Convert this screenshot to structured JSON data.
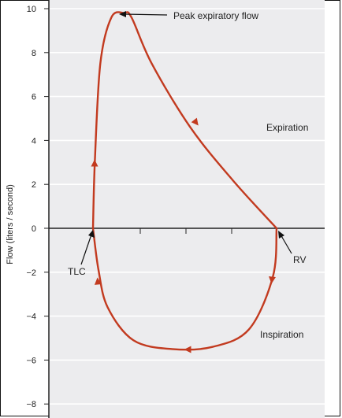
{
  "chart_data": {
    "type": "line",
    "title": "",
    "xlabel": "",
    "ylabel": "Flow (liters / second)",
    "ylim": [
      -8.5,
      10.2
    ],
    "yticks": [
      10,
      8,
      6,
      4,
      2,
      0,
      -2,
      -4,
      -6,
      -8
    ],
    "ytick_labels": [
      "10",
      "8",
      "6",
      "4",
      "2",
      "0",
      "−2",
      "−4",
      "−6",
      "−8"
    ],
    "grid": true,
    "x_unit_note": "relative volume position (TLC at 0, RV at 1)",
    "series": [
      {
        "segment": "expiration",
        "x": [
          0.0,
          0.01,
          0.04,
          0.1,
          0.17,
          0.21,
          0.32,
          0.53,
          0.76,
          1.0
        ],
        "y": [
          0.0,
          3.0,
          7.5,
          9.6,
          9.8,
          9.6,
          7.5,
          4.6,
          2.2,
          0.0
        ]
      },
      {
        "segment": "inspiration",
        "x": [
          1.0,
          0.98,
          0.85,
          0.65,
          0.43,
          0.22,
          0.08,
          0.03,
          0.0
        ],
        "y": [
          0.0,
          -2.2,
          -4.6,
          -5.4,
          -5.5,
          -5.1,
          -3.6,
          -1.9,
          0.0
        ]
      }
    ],
    "annotations": {
      "peak": "Peak expiratory flow",
      "expiration": "Expiration",
      "inspiration": "Inspiration",
      "tlc": "TLC",
      "rv": "RV"
    },
    "colors": {
      "curve": "#c23a1f",
      "background": "#ececee",
      "grid": "#ffffff",
      "axis": "#222222"
    }
  }
}
